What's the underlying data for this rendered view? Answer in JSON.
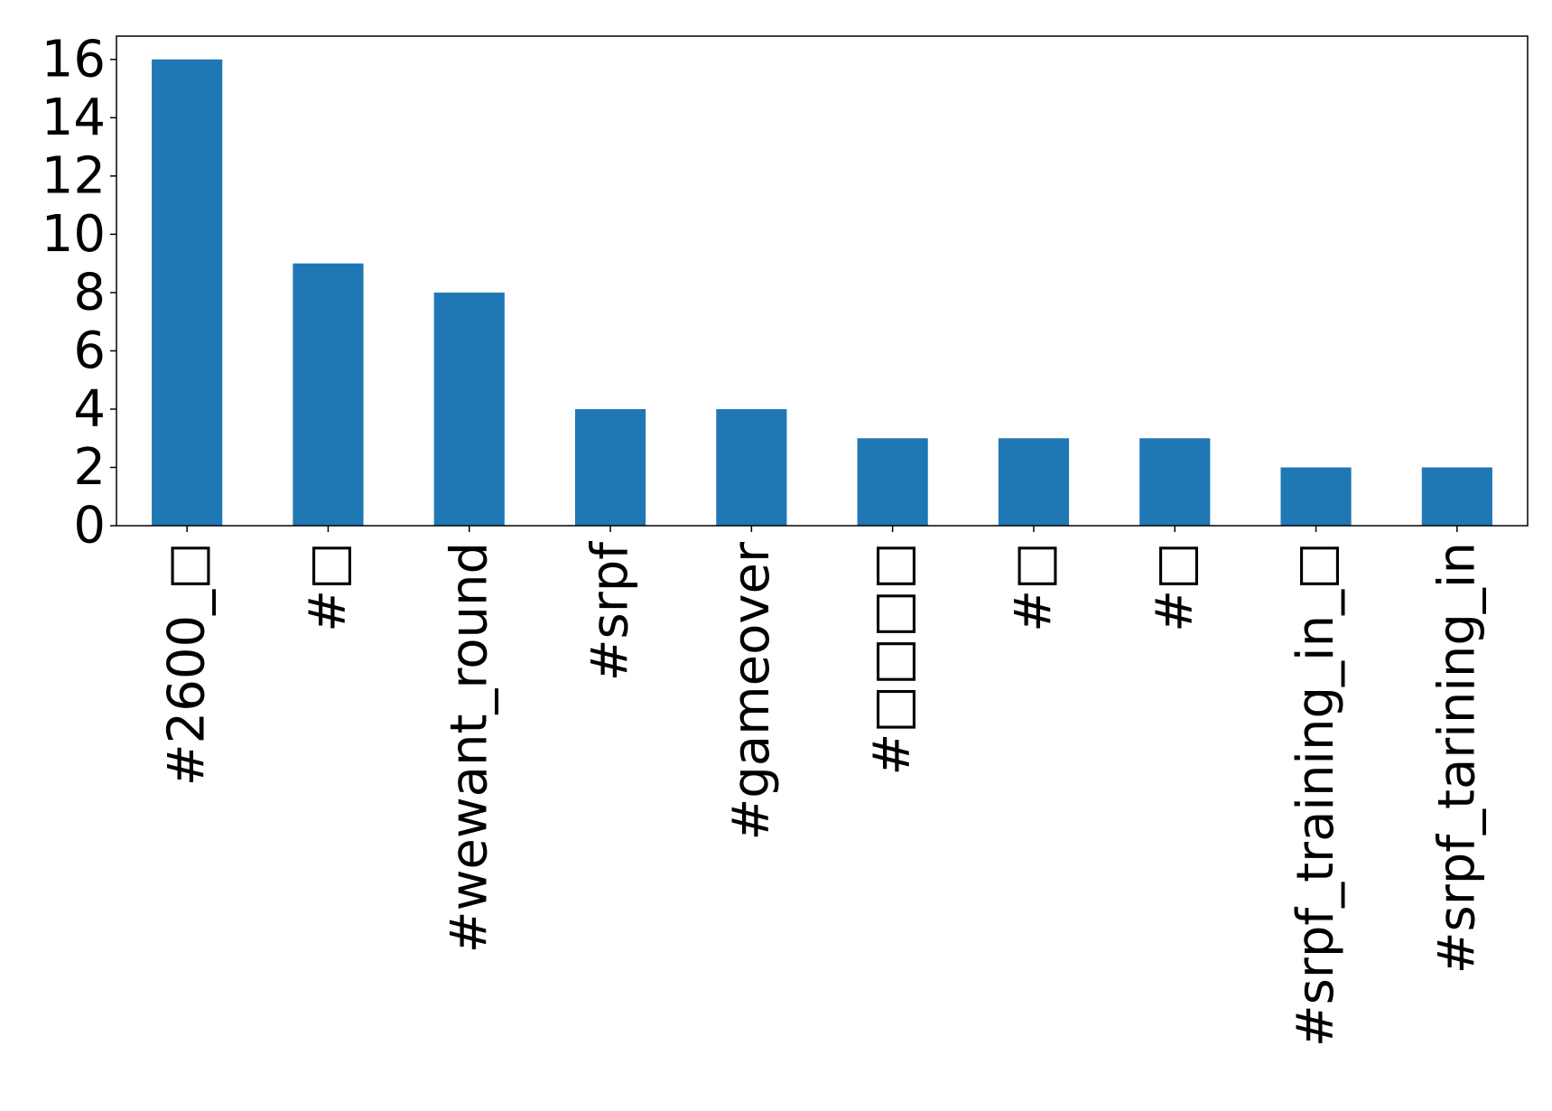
{
  "chart_data": {
    "type": "bar",
    "title": "",
    "xlabel": "",
    "ylabel": "",
    "categories": [
      "#2600_□",
      "#□",
      "#wewant_round",
      "#srpf",
      "#gameover",
      "#□□□□",
      "#□",
      "#□",
      "#srpf_training_in_□",
      "#srpf_tarining_in"
    ],
    "values": [
      16,
      9,
      8,
      4,
      4,
      3,
      3,
      3,
      2,
      2
    ],
    "ylim": [
      0,
      16.8
    ],
    "yticks": [
      0,
      2,
      4,
      6,
      8,
      10,
      12,
      14,
      16
    ],
    "bar_color": "#1f77b4",
    "grid": false,
    "legend": "none"
  }
}
